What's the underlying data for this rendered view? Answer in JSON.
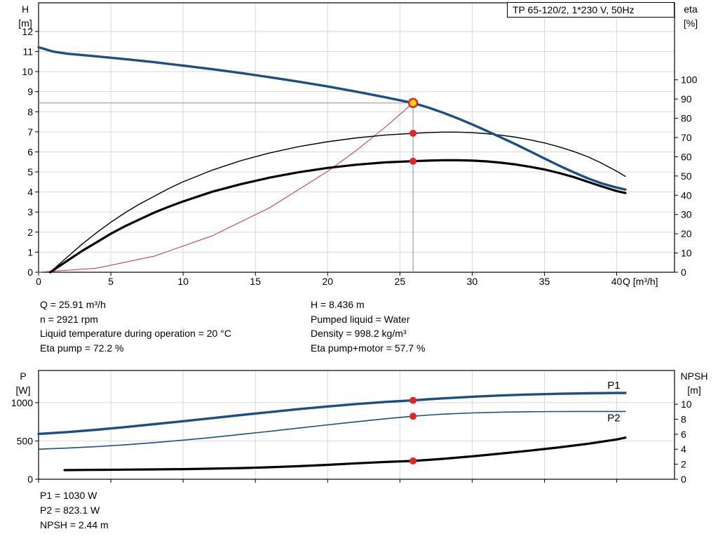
{
  "header": {
    "title_box": "TP 65-120/2, 1*230 V, 50Hz"
  },
  "info_top": {
    "left": [
      "Q = 25.91 m³/h",
      "n = 2921 rpm",
      "Liquid temperature during operation = 20 °C",
      "Eta pump = 72.2 %"
    ],
    "right": [
      "H = 8.436 m",
      "Pumped liquid = Water",
      "Density = 998.2 kg/m³",
      "Eta pump+motor = 57.7 %"
    ]
  },
  "info_bottom": [
    "P1 = 1030 W",
    "P2 = 823.1 W",
    "NPSH = 2.44 m"
  ],
  "colors": {
    "curve_blue": "#1c4f82",
    "curve_black": "#000000",
    "system_curve_red": "#cc4444",
    "marker_red": "#e3242b",
    "marker_yellow": "#ffd60a",
    "grid": "#d8d8d8",
    "guide": "#909090"
  },
  "chart_data": [
    {
      "type": "line",
      "name": "qh-eta-chart",
      "title": "TP 65-120/2, 1*230 V, 50Hz",
      "xlabel": "Q [m³/h]",
      "ylabel_left": [
        "H",
        "[m]"
      ],
      "ylabel_right": [
        "eta",
        "[%]"
      ],
      "xlim": [
        0,
        44
      ],
      "x_ticks": [
        0,
        5,
        10,
        15,
        20,
        25,
        30,
        35,
        40
      ],
      "ylim_left": [
        0,
        13.43
      ],
      "y_ticks_left": [
        0,
        1,
        2,
        3,
        4,
        5,
        6,
        7,
        8,
        9,
        10,
        11,
        12
      ],
      "ylim_right": [
        0,
        140
      ],
      "y_ticks_right": [
        0,
        10,
        20,
        30,
        40,
        50,
        60,
        70,
        80,
        90,
        100
      ],
      "grid": true,
      "series": [
        {
          "name": "system-curve",
          "axis": "left",
          "color": "#cc4444",
          "width": 1.1,
          "points": [
            [
              0,
              0
            ],
            [
              4,
              0.2
            ],
            [
              8,
              0.8
            ],
            [
              12,
              1.81
            ],
            [
              16,
              3.22
            ],
            [
              20,
              5.03
            ],
            [
              22,
              6.08
            ],
            [
              24,
              7.24
            ],
            [
              25.91,
              8.436
            ]
          ]
        },
        {
          "name": "eta-pump-motor-curve",
          "axis": "right",
          "color": "#000000",
          "width": 3.2,
          "points": [
            [
              0.8,
              0
            ],
            [
              2,
              6
            ],
            [
              3,
              11
            ],
            [
              4,
              15.5
            ],
            [
              5,
              20
            ],
            [
              6,
              24
            ],
            [
              7,
              27.5
            ],
            [
              8,
              31
            ],
            [
              9,
              34
            ],
            [
              10,
              36.8
            ],
            [
              12,
              41.8
            ],
            [
              14,
              45.8
            ],
            [
              16,
              49.2
            ],
            [
              18,
              52
            ],
            [
              20,
              54.2
            ],
            [
              22,
              55.9
            ],
            [
              24,
              57.1
            ],
            [
              25.91,
              57.7
            ],
            [
              27,
              58.0
            ],
            [
              28,
              58.2
            ],
            [
              29,
              58.2
            ],
            [
              30,
              58.0
            ],
            [
              31,
              57.6
            ],
            [
              32,
              56.9
            ],
            [
              33,
              56.0
            ],
            [
              34,
              54.8
            ],
            [
              35,
              53.4
            ],
            [
              36,
              51.6
            ],
            [
              37,
              49.5
            ],
            [
              38,
              47.0
            ],
            [
              39,
              44.5
            ],
            [
              40,
              42.2
            ],
            [
              40.6,
              41.2
            ]
          ]
        },
        {
          "name": "eta-pump-curve",
          "axis": "right",
          "color": "#000000",
          "width": 1.4,
          "points": [
            [
              0.8,
              0
            ],
            [
              2,
              8
            ],
            [
              3,
              14.5
            ],
            [
              4,
              20.5
            ],
            [
              5,
              26
            ],
            [
              6,
              31
            ],
            [
              7,
              35.5
            ],
            [
              8,
              39.5
            ],
            [
              9,
              43.5
            ],
            [
              10,
              47
            ],
            [
              12,
              53
            ],
            [
              14,
              58
            ],
            [
              16,
              62
            ],
            [
              18,
              65.3
            ],
            [
              20,
              67.8
            ],
            [
              22,
              69.8
            ],
            [
              24,
              71.3
            ],
            [
              25.91,
              72.2
            ],
            [
              27,
              72.6
            ],
            [
              28,
              72.8
            ],
            [
              29,
              72.8
            ],
            [
              30,
              72.5
            ],
            [
              31,
              72.0
            ],
            [
              32,
              71.2
            ],
            [
              33,
              70.2
            ],
            [
              34,
              68.8
            ],
            [
              35,
              67.2
            ],
            [
              36,
              65.2
            ],
            [
              37,
              62.8
            ],
            [
              38,
              60.0
            ],
            [
              39,
              56.5
            ],
            [
              40,
              52.5
            ],
            [
              40.6,
              49.8
            ]
          ]
        },
        {
          "name": "head-curve",
          "axis": "left",
          "color": "#1c4f82",
          "width": 3.4,
          "points": [
            [
              0,
              11.22
            ],
            [
              1,
              11.0
            ],
            [
              2,
              10.89
            ],
            [
              4,
              10.76
            ],
            [
              6,
              10.62
            ],
            [
              8,
              10.47
            ],
            [
              10,
              10.3
            ],
            [
              12,
              10.12
            ],
            [
              14,
              9.93
            ],
            [
              16,
              9.72
            ],
            [
              18,
              9.5
            ],
            [
              20,
              9.26
            ],
            [
              22,
              9.0
            ],
            [
              24,
              8.72
            ],
            [
              25.91,
              8.436
            ],
            [
              27,
              8.2
            ],
            [
              28,
              7.95
            ],
            [
              29,
              7.67
            ],
            [
              30,
              7.37
            ],
            [
              31,
              7.05
            ],
            [
              32,
              6.72
            ],
            [
              33,
              6.38
            ],
            [
              34,
              6.03
            ],
            [
              35,
              5.67
            ],
            [
              36,
              5.32
            ],
            [
              37,
              4.99
            ],
            [
              38,
              4.68
            ],
            [
              39,
              4.42
            ],
            [
              40,
              4.22
            ],
            [
              40.6,
              4.12
            ]
          ]
        }
      ],
      "guides": [
        {
          "dir": "h",
          "axis": "left",
          "value": 8.436,
          "from": 0,
          "to": 25.91
        },
        {
          "dir": "v",
          "axis": "left",
          "value": 25.91,
          "from": 0,
          "to": 8.436
        }
      ],
      "markers": [
        {
          "name": "duty-point-eta-pump",
          "x": 25.91,
          "y": 72.2,
          "axis": "right",
          "r": 5,
          "fill": "#e3242b"
        },
        {
          "name": "duty-point-eta-pump-motor",
          "x": 25.91,
          "y": 57.7,
          "axis": "right",
          "r": 5,
          "fill": "#e3242b"
        },
        {
          "name": "duty-point",
          "x": 25.91,
          "y": 8.436,
          "axis": "left",
          "r": 6,
          "fill": "#ffd60a",
          "stroke": "#e3242b",
          "stroke_width": 2.5
        }
      ],
      "curve_labels": []
    },
    {
      "type": "line",
      "name": "power-npsh-chart",
      "ylabel_left": [
        "P",
        "[W]"
      ],
      "ylabel_right": [
        "NPSH",
        "[m]"
      ],
      "xlim": [
        0,
        44
      ],
      "x_ticks": [
        0,
        5,
        10,
        15,
        20,
        25,
        30,
        35,
        40
      ],
      "ylim_left": [
        0,
        1420
      ],
      "y_ticks_left": [
        0,
        500,
        1000
      ],
      "ylim_right": [
        0,
        14.5
      ],
      "y_ticks_right": [
        0,
        2,
        4,
        6,
        8,
        10
      ],
      "grid": true,
      "series": [
        {
          "name": "p2-curve",
          "axis": "left",
          "color": "#1c4f82",
          "width": 1.6,
          "points": [
            [
              0,
              392
            ],
            [
              2,
              407
            ],
            [
              4,
              426
            ],
            [
              6,
              450
            ],
            [
              8,
              478
            ],
            [
              10,
              510
            ],
            [
              12,
              546
            ],
            [
              14,
              585
            ],
            [
              16,
              626
            ],
            [
              18,
              668
            ],
            [
              20,
              710
            ],
            [
              22,
              750
            ],
            [
              24,
              790
            ],
            [
              25.91,
              823.1
            ],
            [
              27,
              838
            ],
            [
              28,
              850
            ],
            [
              30,
              866
            ],
            [
              32,
              876
            ],
            [
              34,
              881
            ],
            [
              36,
              884
            ],
            [
              38,
              885
            ],
            [
              40,
              885
            ],
            [
              40.6,
              885
            ]
          ]
        },
        {
          "name": "p1-curve",
          "axis": "left",
          "color": "#1c4f82",
          "width": 3.4,
          "points": [
            [
              0,
              592
            ],
            [
              2,
              616
            ],
            [
              4,
              646
            ],
            [
              6,
              681
            ],
            [
              8,
              719
            ],
            [
              10,
              758
            ],
            [
              12,
              798
            ],
            [
              14,
              838
            ],
            [
              16,
              877
            ],
            [
              18,
              915
            ],
            [
              20,
              950
            ],
            [
              22,
              982
            ],
            [
              24,
              1010
            ],
            [
              25.91,
              1030
            ],
            [
              27,
              1044
            ],
            [
              28,
              1056
            ],
            [
              30,
              1077
            ],
            [
              32,
              1094
            ],
            [
              34,
              1107
            ],
            [
              36,
              1116
            ],
            [
              38,
              1122
            ],
            [
              40,
              1126
            ],
            [
              40.6,
              1127
            ]
          ]
        },
        {
          "name": "npsh-curve",
          "axis": "right",
          "color": "#000000",
          "width": 3.2,
          "points": [
            [
              1.8,
              1.22
            ],
            [
              4,
              1.25
            ],
            [
              6,
              1.28
            ],
            [
              8,
              1.31
            ],
            [
              10,
              1.35
            ],
            [
              12,
              1.41
            ],
            [
              14,
              1.49
            ],
            [
              16,
              1.6
            ],
            [
              18,
              1.74
            ],
            [
              20,
              1.92
            ],
            [
              22,
              2.12
            ],
            [
              24,
              2.3
            ],
            [
              25.91,
              2.44
            ],
            [
              27,
              2.58
            ],
            [
              28,
              2.72
            ],
            [
              30,
              3.05
            ],
            [
              32,
              3.42
            ],
            [
              34,
              3.82
            ],
            [
              36,
              4.25
            ],
            [
              38,
              4.72
            ],
            [
              40,
              5.3
            ],
            [
              40.6,
              5.55
            ]
          ]
        }
      ],
      "guides": [],
      "markers": [
        {
          "name": "duty-point-p1",
          "x": 25.91,
          "y": 1030,
          "axis": "left",
          "r": 5,
          "fill": "#e3242b"
        },
        {
          "name": "duty-point-p2",
          "x": 25.91,
          "y": 823.1,
          "axis": "left",
          "r": 5,
          "fill": "#e3242b"
        },
        {
          "name": "duty-point-npsh",
          "x": 25.91,
          "y": 2.44,
          "axis": "right",
          "r": 5,
          "fill": "#e3242b"
        }
      ],
      "curve_labels": [
        {
          "name": "p1-curve-label",
          "text": "P1",
          "x": 39.8,
          "y": 1228,
          "axis": "left",
          "color": "#1c4f82"
        },
        {
          "name": "p2-curve-label",
          "text": "P2",
          "x": 39.8,
          "y": 800,
          "axis": "left",
          "color": "#1c4f82"
        }
      ]
    }
  ]
}
